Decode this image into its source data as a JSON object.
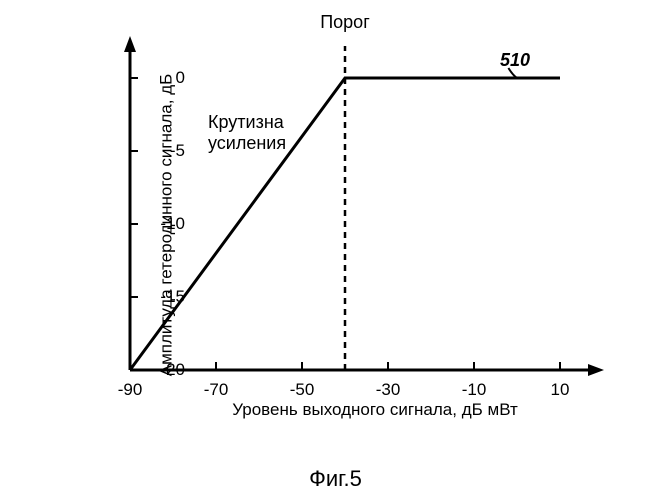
{
  "chart": {
    "type": "line",
    "background_color": "#ffffff",
    "stroke_color": "#000000",
    "axis_linewidth": 3,
    "data_linewidth": 3,
    "xlim": [
      -90,
      10
    ],
    "ylim": [
      -20,
      0
    ],
    "x_ticks": [
      -90,
      -70,
      -50,
      -30,
      -10,
      10
    ],
    "y_ticks": [
      -20,
      -15,
      -10,
      -5,
      0
    ],
    "x_tick_labels": [
      "-90",
      "-70",
      "-50",
      "-30",
      "-10",
      "10"
    ],
    "y_tick_labels": [
      "-20",
      "-15",
      "-10",
      "-5",
      "0"
    ],
    "xlabel": "Уровень выходного сигнала, дБ мВт",
    "ylabel": "Амплитуда гетеродинного сигнала, дБ",
    "label_fontsize": 17,
    "tick_fontsize": 17,
    "threshold": {
      "label": "Порог",
      "x": -40,
      "dash": "6,5"
    },
    "slope_label": {
      "line1": "Крутизна",
      "line2": "усиления"
    },
    "reference": {
      "text": "510"
    },
    "data": {
      "x": [
        -90,
        -40,
        10
      ],
      "y": [
        -20,
        0,
        0
      ]
    },
    "arrowhead_size": 12
  },
  "caption": "Фиг.5"
}
